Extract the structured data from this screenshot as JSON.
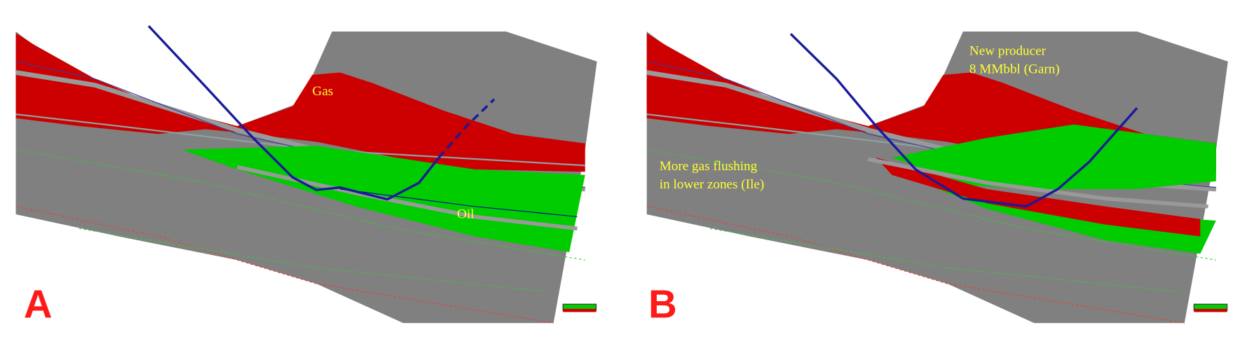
{
  "panel_a": {
    "label": "A",
    "annotations": [
      "Gas",
      "Oil"
    ]
  },
  "panel_b": {
    "label": "B",
    "annotations": [
      "New producer",
      "8 MMbbl (Garn)",
      "More gas flushing",
      "in lower zones (Ile)"
    ]
  }
}
